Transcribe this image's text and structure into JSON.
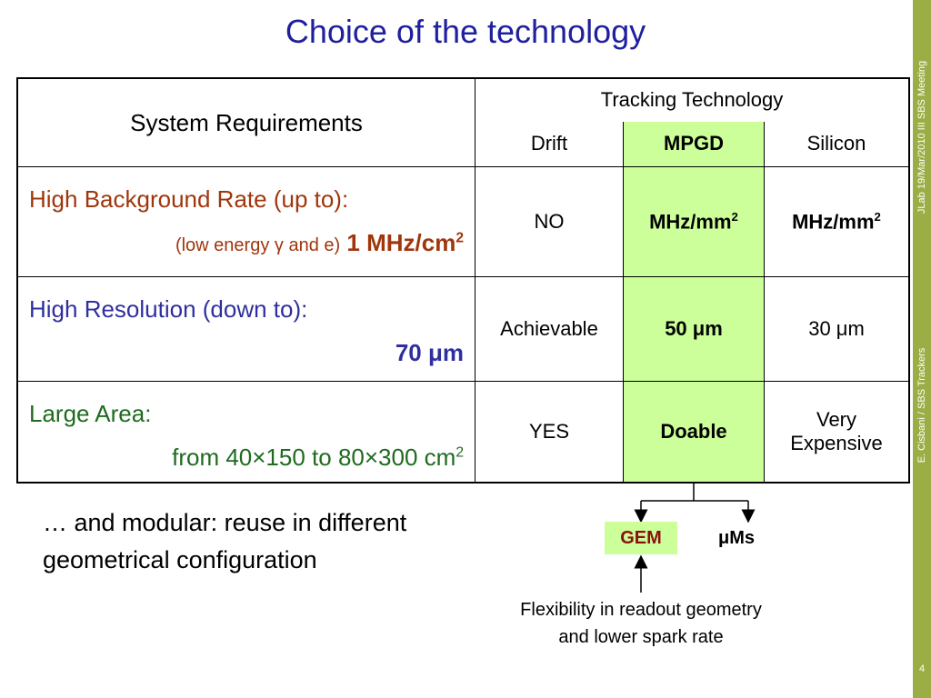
{
  "title": "Choice of the technology",
  "side": {
    "top_text": "JLab 19/Mar/2010 III SBS Meeting",
    "mid_text": "E. Cisbani / SBS Trackers",
    "page_number": "4"
  },
  "table": {
    "header_left": "System Requirements",
    "header_group": "Tracking Technology",
    "columns": [
      "Drift",
      "MPGD",
      "Silicon"
    ],
    "rows": [
      {
        "req_line1": "High Background Rate (up to):",
        "req_line2_small": "(low energy γ and e)",
        "req_line2_value": "1 MHz/cm",
        "req_line2_sup": "2",
        "drift": "NO",
        "mpgd": "MHz/mm",
        "mpgd_sup": "2",
        "silicon": "MHz/mm",
        "silicon_sup": "2"
      },
      {
        "req_line1": "High Resolution (down to):",
        "req_line2_value": "70 μm",
        "drift": "Achievable",
        "mpgd": "50 μm",
        "silicon": "30 μm"
      },
      {
        "req_line1": "Large Area:",
        "req_line2_value": "from 40×150 to 80×300 cm",
        "req_line2_sup": "2",
        "drift": "YES",
        "mpgd": "Doable",
        "silicon_line1": "Very",
        "silicon_line2": "Expensive"
      }
    ]
  },
  "modular_note": "… and modular: reuse in different geometrical configuration",
  "diagram": {
    "gem_label": "GEM",
    "ums_label": "μMs",
    "note_line1": "Flexibility in readout geometry",
    "note_line2": "and lower spark rate"
  },
  "colors": {
    "title": "#1f1f9f",
    "band": "#9aae45",
    "mpgd_fill": "#ccff99",
    "brown_text": "#a0360c",
    "blue_text": "#2f2fa0",
    "green_text": "#1f6b1f"
  }
}
